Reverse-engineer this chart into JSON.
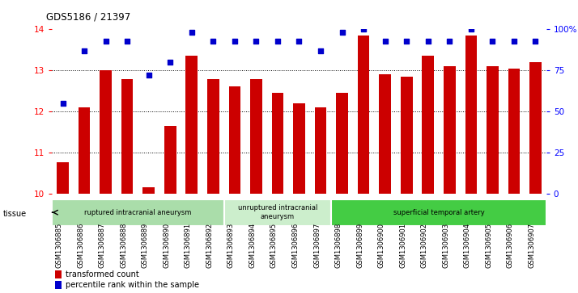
{
  "title": "GDS5186 / 21397",
  "samples": [
    "GSM1306885",
    "GSM1306886",
    "GSM1306887",
    "GSM1306888",
    "GSM1306889",
    "GSM1306890",
    "GSM1306891",
    "GSM1306892",
    "GSM1306893",
    "GSM1306894",
    "GSM1306895",
    "GSM1306896",
    "GSM1306897",
    "GSM1306898",
    "GSM1306899",
    "GSM1306900",
    "GSM1306901",
    "GSM1306902",
    "GSM1306903",
    "GSM1306904",
    "GSM1306905",
    "GSM1306906",
    "GSM1306907"
  ],
  "transformed_count": [
    10.75,
    12.1,
    13.0,
    12.78,
    10.15,
    11.65,
    13.35,
    12.78,
    12.6,
    12.78,
    12.45,
    12.2,
    12.1,
    12.45,
    13.85,
    12.9,
    12.85,
    13.35,
    13.1,
    13.85,
    13.1,
    13.05,
    13.2
  ],
  "percentile_rank": [
    55,
    87,
    93,
    93,
    72,
    80,
    98,
    93,
    93,
    93,
    93,
    93,
    87,
    98,
    100,
    93,
    93,
    93,
    93,
    100,
    93,
    93,
    93
  ],
  "ylim_left": [
    10,
    14
  ],
  "ylim_right": [
    0,
    100
  ],
  "yticks_left": [
    10,
    11,
    12,
    13,
    14
  ],
  "yticks_right": [
    0,
    25,
    50,
    75,
    100
  ],
  "ytick_labels_right": [
    "0",
    "25",
    "50",
    "75",
    "100%"
  ],
  "bar_color": "#cc0000",
  "dot_color": "#0000cc",
  "plot_bg_color": "#ffffff",
  "fig_bg_color": "#ffffff",
  "groups": [
    {
      "label": "ruptured intracranial aneurysm",
      "start": 0,
      "end": 8,
      "color": "#aaddaa"
    },
    {
      "label": "unruptured intracranial\naneurysm",
      "start": 8,
      "end": 13,
      "color": "#cceecc"
    },
    {
      "label": "superficial temporal artery",
      "start": 13,
      "end": 23,
      "color": "#44cc44"
    }
  ],
  "legend_bar_label": "transformed count",
  "legend_dot_label": "percentile rank within the sample",
  "tissue_label": "tissue"
}
